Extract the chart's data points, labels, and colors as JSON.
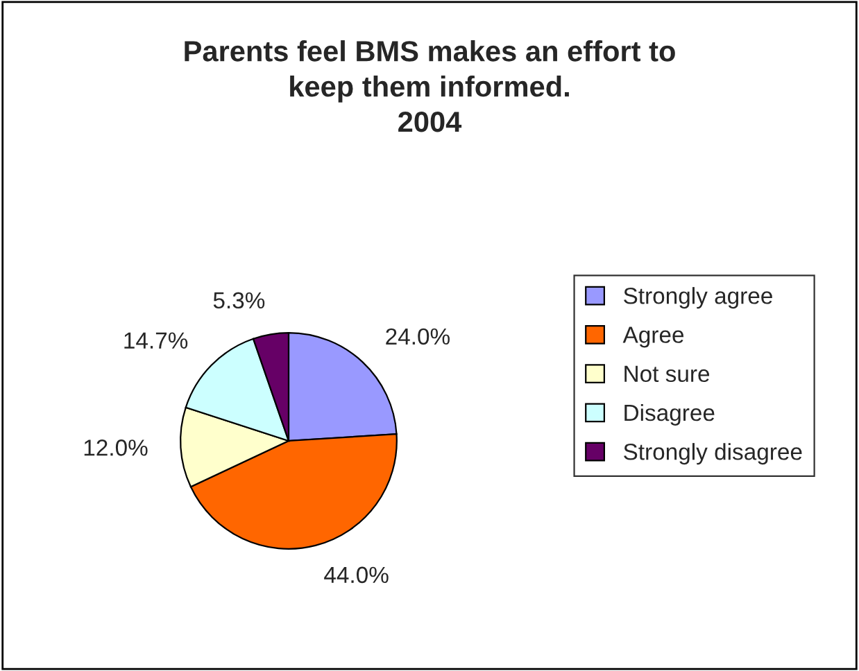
{
  "chart_data": {
    "type": "pie",
    "title": "Parents feel BMS makes an effort to\nkeep them informed.\n2004",
    "categories": [
      "Strongly agree",
      "Agree",
      "Not sure",
      "Disagree",
      "Strongly disagree"
    ],
    "values": [
      24.0,
      44.0,
      12.0,
      14.7,
      5.3
    ],
    "value_labels": [
      "24.0%",
      "44.0%",
      "12.0%",
      "14.7%",
      "5.3%"
    ],
    "colors": [
      "#9999ff",
      "#ff6600",
      "#ffffcc",
      "#ccffff",
      "#660066"
    ],
    "legend": "right"
  }
}
